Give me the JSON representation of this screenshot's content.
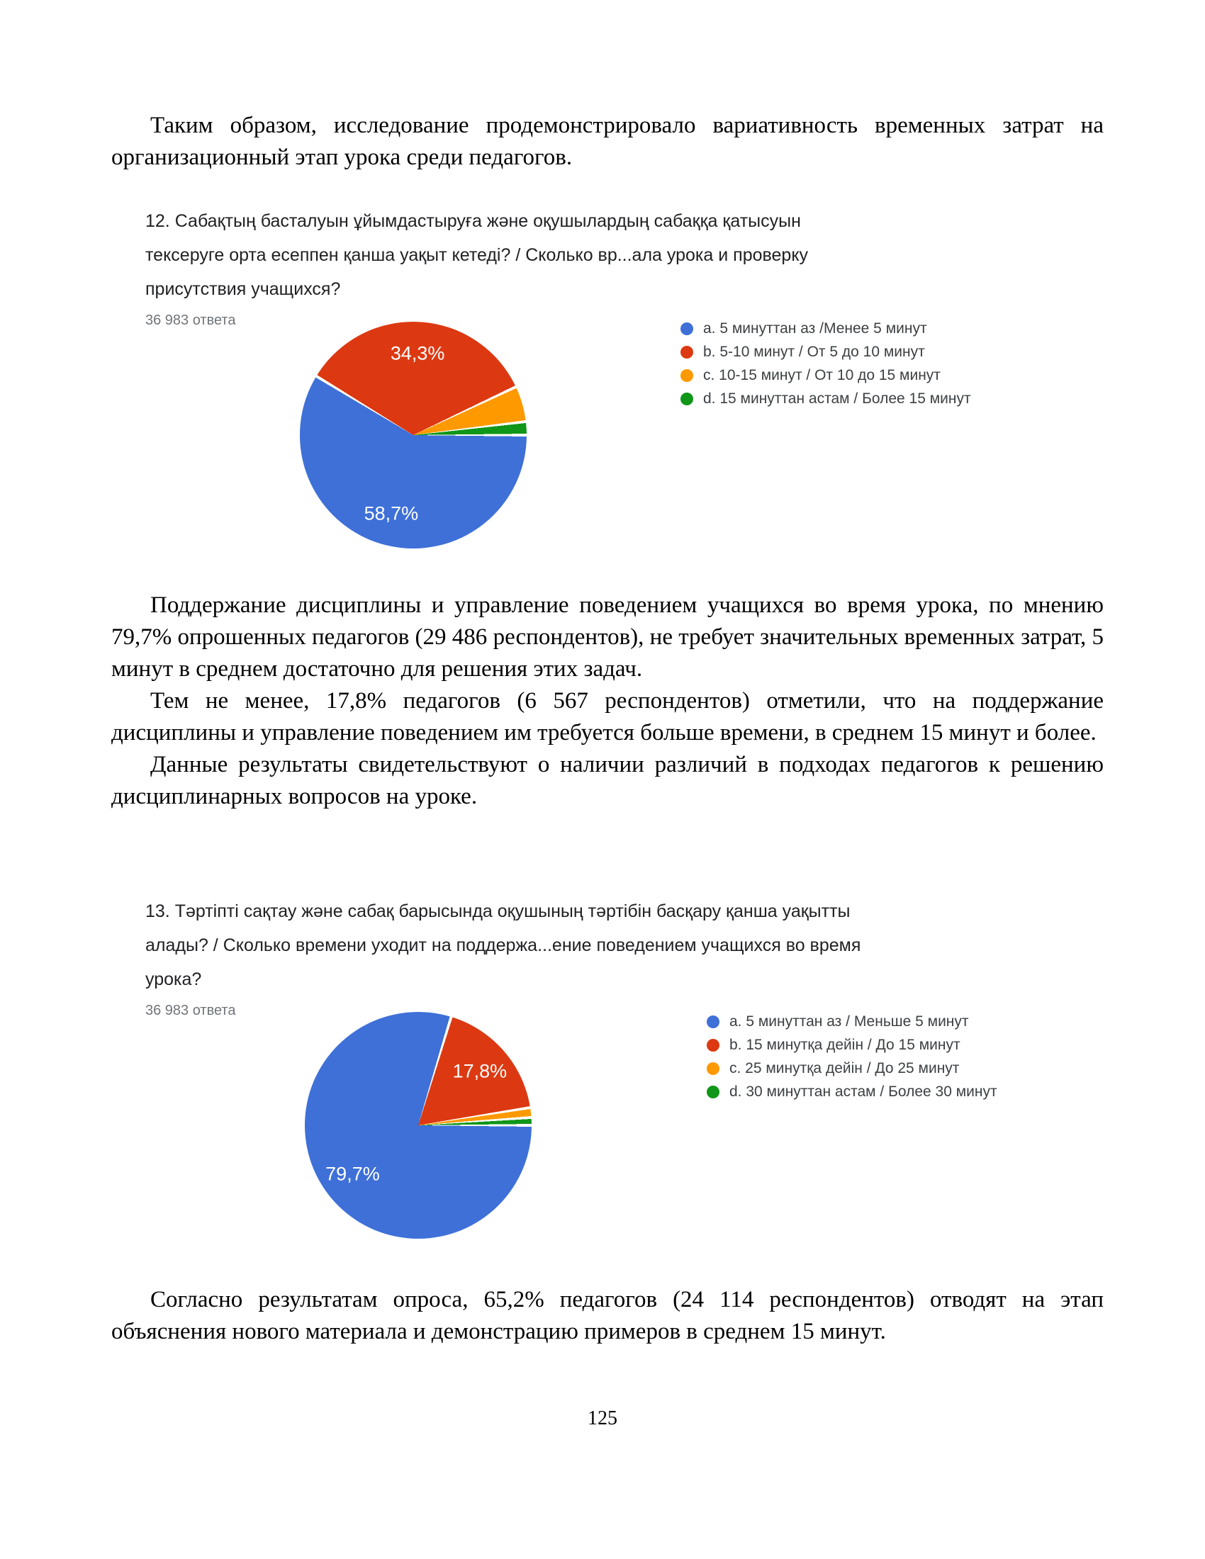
{
  "page": {
    "paragraphs": {
      "p1": "Таким образом, исследование продемонстрировало вариативность временных затрат на организационный этап урока среди педагогов.",
      "p2": "Поддержание дисциплины и управление поведением учащихся во время урока, по мнению 79,7% опрошенных педагогов (29 486 респондентов), не требует значительных временных затрат, 5 минут в среднем достаточно для решения этих задач.",
      "p3": "Тем не менее, 17,8% педагогов (6 567 респондентов) отметили, что на поддержание дисциплины и управление поведением им требуется больше времени, в среднем 15 минут и более.",
      "p4": "Данные результаты свидетельствуют о наличии различий в подходах педагогов к решению дисциплинарных вопросов на уроке.",
      "p5": "Согласно результатам опроса, 65,2% педагогов (24 114 респондентов) отводят на этап объяснения нового материала и демонстрацию примеров в среднем 15 минут."
    },
    "page_number": "125"
  },
  "palette": {
    "blue": "#3E70D8",
    "red": "#DC3912",
    "orange": "#FF9900",
    "green": "#109618"
  },
  "chart_data": [
    {
      "type": "pie",
      "question": "12. Сабақтың басталуын ұйымдастыруға және оқушылардың сабаққа қатысуын тексеруге орта есеппен қанша уақыт кетеді? / Сколько вр...ала урока и проверку присутствия учащихся?",
      "responses": "36 983 ответа",
      "legend_position": "right",
      "categories": [
        "a. 5 минуттан аз /Менее 5 минут",
        "b. 5-10 минут / От 5 до 10 минут",
        "c. 10-15 минут / От 10 до 15 минут",
        "d. 15 минуттан астам / Более 15 минут"
      ],
      "values": [
        58.7,
        34.3,
        5.1,
        1.9
      ],
      "colors": [
        "#3E70D8",
        "#DC3912",
        "#FF9900",
        "#109618"
      ],
      "labels": [
        {
          "slice": 0,
          "text": "58,7%"
        },
        {
          "slice": 1,
          "text": "34,3%"
        }
      ]
    },
    {
      "type": "pie",
      "question": "13. Тәртіпті сақтау және сабақ барысында оқушының тәртібін басқару қанша уақытты алады? / Сколько времени уходит на поддержа...ение поведением учащихся во время урока?",
      "responses": "36 983 ответа",
      "legend_position": "right",
      "categories": [
        "a. 5 минуттан аз / Меньше 5 минут",
        "b. 15 минутқа дейін / До 15 минут",
        "c. 25 минутқа дейін / До 25 минут",
        "d. 30 минуттан астам / Более 30 минут"
      ],
      "values": [
        79.7,
        17.8,
        1.4,
        1.1
      ],
      "colors": [
        "#3E70D8",
        "#DC3912",
        "#FF9900",
        "#109618"
      ],
      "labels": [
        {
          "slice": 0,
          "text": "79,7%"
        },
        {
          "slice": 1,
          "text": "17,8%"
        }
      ]
    }
  ]
}
